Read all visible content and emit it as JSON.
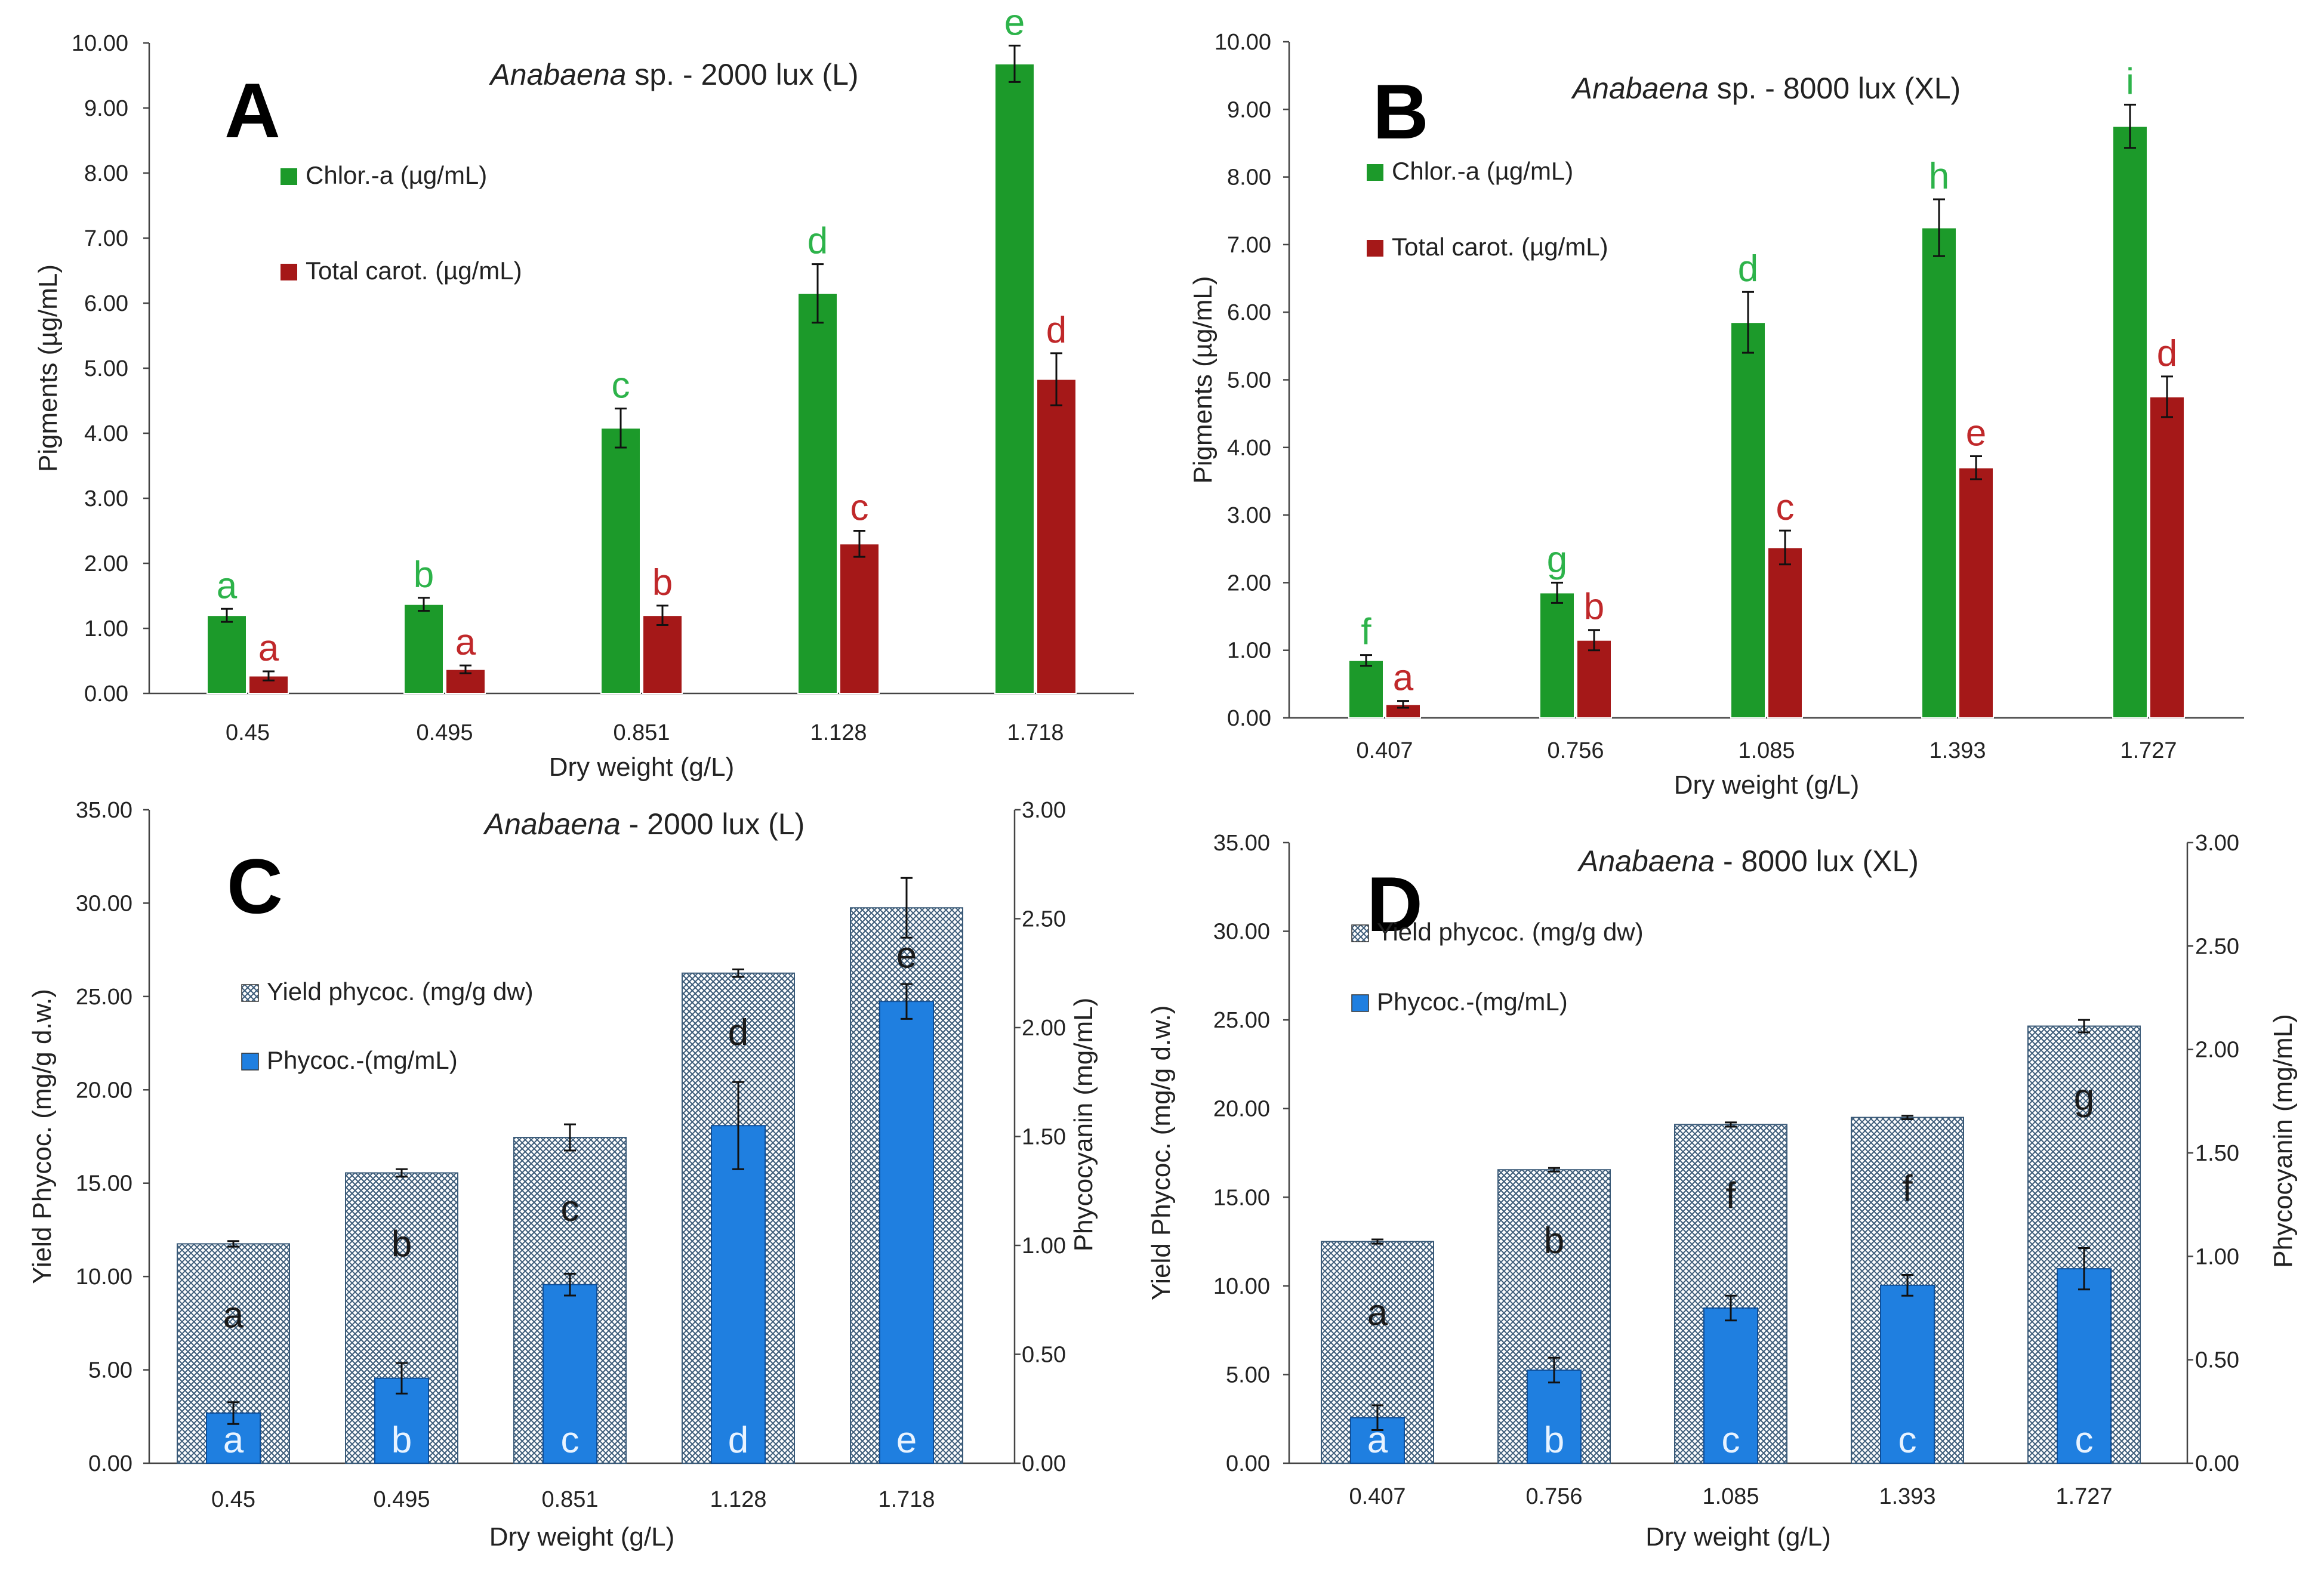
{
  "colors": {
    "chlor": "#1c9a2a",
    "carot": "#a51818",
    "phycoc": "#1f7fe0",
    "hatch": "#3a5a78",
    "sig_chlor": "#2db34a",
    "sig_carot": "#c0282a",
    "sig_yield": "#1a1a1a",
    "sig_phycoc": "#e8f3ff"
  },
  "chart_data": [
    {
      "id": "A",
      "type": "bar",
      "panel_label": "A",
      "title_species": "Anabaena",
      "title_rest": " sp. - 2000 lux (L)",
      "xlabel": "Dry weight (g/L)",
      "ylabel": "Pigments (µg/mL)",
      "ylim": [
        0,
        10
      ],
      "y_ticks": [
        "0.00",
        "1.00",
        "2.00",
        "3.00",
        "4.00",
        "5.00",
        "6.00",
        "7.00",
        "8.00",
        "9.00",
        "10.00"
      ],
      "categories": [
        "0.45",
        "0.495",
        "0.851",
        "1.128",
        "1.718"
      ],
      "series": [
        {
          "name": "Chlor.-a (µg/mL)",
          "values": [
            1.2,
            1.37,
            4.08,
            6.15,
            9.68
          ],
          "errors": [
            0.1,
            0.1,
            0.3,
            0.45,
            0.28
          ],
          "letters": [
            "a",
            "b",
            "c",
            "d",
            "e"
          ]
        },
        {
          "name": "Total carot. (µg/mL)",
          "values": [
            0.27,
            0.37,
            1.2,
            2.3,
            4.83
          ],
          "errors": [
            0.07,
            0.06,
            0.15,
            0.2,
            0.4
          ],
          "letters": [
            "a",
            "a",
            "b",
            "c",
            "d"
          ]
        }
      ]
    },
    {
      "id": "B",
      "type": "bar",
      "panel_label": "B",
      "title_species": "Anabaena",
      "title_rest": " sp. - 8000 lux (XL)",
      "xlabel": "Dry weight (g/L)",
      "ylabel": "Pigments (µg/mL)",
      "ylim": [
        0,
        10
      ],
      "y_ticks": [
        "0.00",
        "1.00",
        "2.00",
        "3.00",
        "4.00",
        "5.00",
        "6.00",
        "7.00",
        "8.00",
        "9.00",
        "10.00"
      ],
      "categories": [
        "0.407",
        "0.756",
        "1.085",
        "1.393",
        "1.727"
      ],
      "series": [
        {
          "name": "Chlor.-a (µg/mL)",
          "values": [
            0.85,
            1.85,
            5.85,
            7.25,
            8.75
          ],
          "errors": [
            0.08,
            0.15,
            0.45,
            0.42,
            0.32
          ],
          "letters": [
            "f",
            "g",
            "d",
            "h",
            "i"
          ]
        },
        {
          "name": "Total carot. (µg/mL)",
          "values": [
            0.2,
            1.15,
            2.52,
            3.7,
            4.75
          ],
          "errors": [
            0.05,
            0.15,
            0.25,
            0.17,
            0.3
          ],
          "letters": [
            "a",
            "b",
            "c",
            "e",
            "d"
          ]
        }
      ]
    },
    {
      "id": "C",
      "type": "bar",
      "panel_label": "C",
      "title_species": "Anabaena",
      "title_rest": " - 2000 lux (L)",
      "xlabel": "Dry weight (g/L)",
      "ylabel": "Yield Phycoc. (mg/g d.w.)",
      "y2label": "Phycocyanin  (mg/mL)",
      "ylim": [
        0,
        35
      ],
      "y2lim": [
        0,
        3
      ],
      "y_ticks": [
        "0.00",
        "5.00",
        "10.00",
        "15.00",
        "20.00",
        "25.00",
        "30.00",
        "35.00"
      ],
      "y2_ticks": [
        "0.00",
        "0.50",
        "1.00",
        "1.50",
        "2.00",
        "2.50",
        "3.00"
      ],
      "categories": [
        "0.45",
        "0.495",
        "0.851",
        "1.128",
        "1.718"
      ],
      "series": [
        {
          "name": "Yield phycoc. (mg/g dw)",
          "axis": "left",
          "values": [
            11.75,
            15.55,
            17.45,
            26.25,
            29.75
          ],
          "errors": [
            0.15,
            0.2,
            0.7,
            0.2,
            1.6
          ],
          "letters": [
            "a",
            "b",
            "c",
            "d",
            "e"
          ]
        },
        {
          "name": "Phycoc.-(mg/mL)",
          "axis": "right",
          "values": [
            0.23,
            0.39,
            0.82,
            1.55,
            2.12
          ],
          "errors": [
            0.05,
            0.07,
            0.05,
            0.2,
            0.08
          ],
          "letters": [
            "a",
            "b",
            "c",
            "d",
            "e"
          ]
        }
      ]
    },
    {
      "id": "D",
      "type": "bar",
      "panel_label": "D",
      "title_species": "Anabaena",
      "title_rest": " - 8000 lux (XL)",
      "xlabel": "Dry weight (g/L)",
      "ylabel": "Yield Phycoc. (mg/g d.w.)",
      "y2label": "Phycocyanin  (mg/mL)",
      "ylim": [
        0,
        35
      ],
      "y2lim": [
        0,
        3
      ],
      "y_ticks": [
        "0.00",
        "5.00",
        "10.00",
        "15.00",
        "20.00",
        "25.00",
        "30.00",
        "35.00"
      ],
      "y2_ticks": [
        "0.00",
        "0.50",
        "1.00",
        "1.50",
        "2.00",
        "2.50",
        "3.00"
      ],
      "categories": [
        "0.407",
        "0.756",
        "1.085",
        "1.393",
        "1.727"
      ],
      "series": [
        {
          "name": "Yield phycoc. (mg/g dw)",
          "axis": "left",
          "values": [
            12.5,
            16.55,
            19.1,
            19.5,
            24.65
          ],
          "errors": [
            0.12,
            0.1,
            0.12,
            0.1,
            0.35
          ],
          "letters": [
            "a",
            "b",
            "f",
            "f",
            "g"
          ]
        },
        {
          "name": "Phycoc.-(mg/mL)",
          "axis": "right",
          "values": [
            0.22,
            0.45,
            0.75,
            0.86,
            0.94
          ],
          "errors": [
            0.06,
            0.06,
            0.06,
            0.05,
            0.1
          ],
          "letters": [
            "a",
            "b",
            "c",
            "c",
            "c"
          ]
        }
      ]
    }
  ]
}
